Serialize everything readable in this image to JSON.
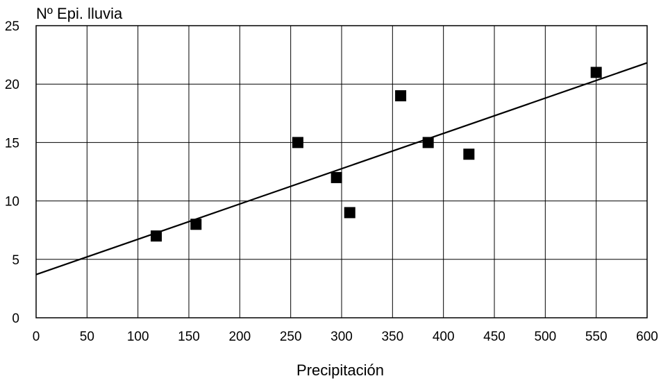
{
  "chart_data": {
    "type": "scatter",
    "title": "",
    "ylabel": "Nº Epi. lluvia",
    "xlabel": "Precipitación",
    "xlim": [
      0,
      600
    ],
    "ylim": [
      0,
      25
    ],
    "xticks": [
      "0",
      "50",
      "100",
      "150",
      "200",
      "250",
      "300",
      "350",
      "400",
      "450",
      "500",
      "550",
      "600"
    ],
    "yticks": [
      "0",
      "5",
      "10",
      "15",
      "20",
      "25"
    ],
    "grid": true,
    "legend": "none",
    "marker": "square",
    "marker_color": "#000000",
    "series": [
      {
        "points": [
          {
            "x": 118,
            "y": 7
          },
          {
            "x": 157,
            "y": 8
          },
          {
            "x": 257,
            "y": 15
          },
          {
            "x": 295,
            "y": 12
          },
          {
            "x": 308,
            "y": 9
          },
          {
            "x": 358,
            "y": 19
          },
          {
            "x": 385,
            "y": 15
          },
          {
            "x": 425,
            "y": 14
          },
          {
            "x": 550,
            "y": 21
          }
        ]
      }
    ],
    "trendline": {
      "type": "linear",
      "intercept": 3.7,
      "slope": 0.0302
    }
  }
}
